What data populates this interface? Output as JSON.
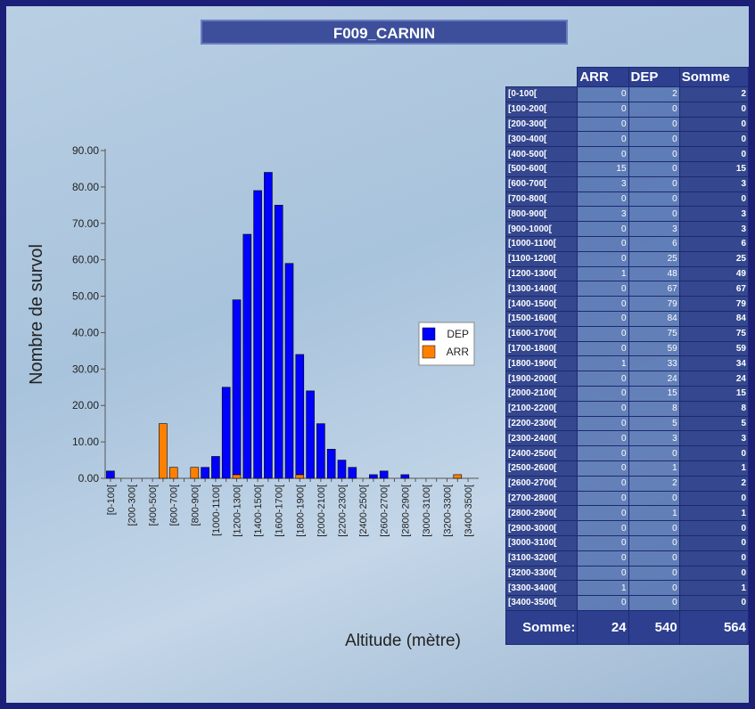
{
  "chart_data": {
    "type": "bar",
    "stacked": true,
    "title": "F009_CARNIN",
    "x_label": "Altitude (mètre)",
    "y_label": "Nombre de survol",
    "categories": [
      "[0-100[",
      null,
      "[200-300[",
      null,
      "[400-500[",
      null,
      "[600-700[",
      null,
      "[800-900[",
      null,
      "[1000-1100[",
      null,
      "[1200-1300[",
      null,
      "[1400-1500[",
      null,
      "[1600-1700[",
      null,
      "[1800-1900[",
      null,
      "[2000-2100[",
      null,
      "[2200-2300[",
      null,
      "[2400-2500[",
      null,
      "[2600-2700[",
      null,
      "[2800-2900[",
      null,
      "[3000-3100[",
      null,
      "[3200-3300[",
      null,
      "[3400-3500["
    ],
    "series": [
      {
        "name": "DEP",
        "color": "#0000ff",
        "values": [
          2,
          0,
          0,
          0,
          0,
          0,
          0,
          0,
          0,
          3,
          6,
          25,
          48,
          67,
          79,
          84,
          75,
          59,
          33,
          24,
          15,
          8,
          5,
          3,
          0,
          1,
          2,
          0,
          1,
          0,
          0,
          0,
          0,
          0,
          0
        ]
      },
      {
        "name": "ARR",
        "color": "#ff8000",
        "values": [
          0,
          0,
          0,
          0,
          0,
          15,
          3,
          0,
          3,
          0,
          0,
          0,
          1,
          0,
          0,
          0,
          0,
          0,
          1,
          0,
          0,
          0,
          0,
          0,
          0,
          0,
          0,
          0,
          0,
          0,
          0,
          0,
          0,
          1,
          0
        ]
      }
    ],
    "ylim": [
      0,
      90
    ],
    "yticks": [
      {
        "value": 0,
        "label": "0.00"
      },
      {
        "value": 10,
        "label": "10.00"
      },
      {
        "value": 20,
        "label": "20.00"
      },
      {
        "value": 30,
        "label": "30.00"
      },
      {
        "value": 40,
        "label": "40.00"
      },
      {
        "value": 50,
        "label": "50.00"
      },
      {
        "value": 60,
        "label": "60.00"
      },
      {
        "value": 70,
        "label": "70.00"
      },
      {
        "value": 80,
        "label": "80.00"
      },
      {
        "value": 90,
        "label": "90.00"
      }
    ],
    "legend": "right"
  },
  "table": {
    "headers": [
      "ARR",
      "DEP",
      "Somme"
    ],
    "rows": [
      [
        "[0-100[",
        0,
        2,
        2
      ],
      [
        "[100-200[",
        0,
        0,
        0
      ],
      [
        "[200-300[",
        0,
        0,
        0
      ],
      [
        "[300-400[",
        0,
        0,
        0
      ],
      [
        "[400-500[",
        0,
        0,
        0
      ],
      [
        "[500-600[",
        15,
        0,
        15
      ],
      [
        "[600-700[",
        3,
        0,
        3
      ],
      [
        "[700-800[",
        0,
        0,
        0
      ],
      [
        "[800-900[",
        3,
        0,
        3
      ],
      [
        "[900-1000[",
        0,
        3,
        3
      ],
      [
        "[1000-1100[",
        0,
        6,
        6
      ],
      [
        "[1100-1200[",
        0,
        25,
        25
      ],
      [
        "[1200-1300[",
        1,
        48,
        49
      ],
      [
        "[1300-1400[",
        0,
        67,
        67
      ],
      [
        "[1400-1500[",
        0,
        79,
        79
      ],
      [
        "[1500-1600[",
        0,
        84,
        84
      ],
      [
        "[1600-1700[",
        0,
        75,
        75
      ],
      [
        "[1700-1800[",
        0,
        59,
        59
      ],
      [
        "[1800-1900[",
        1,
        33,
        34
      ],
      [
        "[1900-2000[",
        0,
        24,
        24
      ],
      [
        "[2000-2100[",
        0,
        15,
        15
      ],
      [
        "[2100-2200[",
        0,
        8,
        8
      ],
      [
        "[2200-2300[",
        0,
        5,
        5
      ],
      [
        "[2300-2400[",
        0,
        3,
        3
      ],
      [
        "[2400-2500[",
        0,
        0,
        0
      ],
      [
        "[2500-2600[",
        0,
        1,
        1
      ],
      [
        "[2600-2700[",
        0,
        2,
        2
      ],
      [
        "[2700-2800[",
        0,
        0,
        0
      ],
      [
        "[2800-2900[",
        0,
        1,
        1
      ],
      [
        "[2900-3000[",
        0,
        0,
        0
      ],
      [
        "[3000-3100[",
        0,
        0,
        0
      ],
      [
        "[3100-3200[",
        0,
        0,
        0
      ],
      [
        "[3200-3300[",
        0,
        0,
        0
      ],
      [
        "[3300-3400[",
        1,
        0,
        1
      ],
      [
        "[3400-3500[",
        0,
        0,
        0
      ]
    ],
    "footer": [
      "Somme:",
      24,
      540,
      564
    ]
  }
}
